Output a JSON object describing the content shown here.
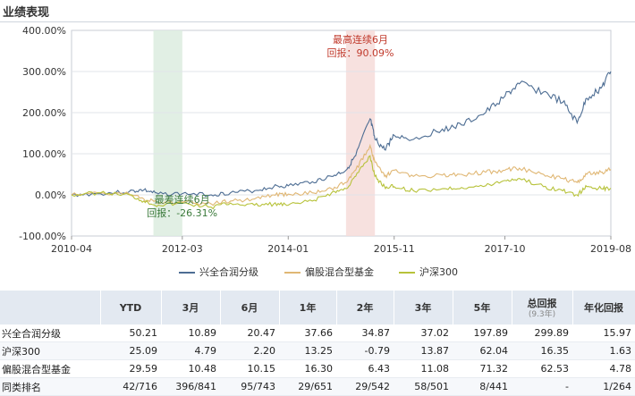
{
  "header": {
    "title": "业绩表现"
  },
  "chart_data": {
    "type": "line",
    "title": "",
    "xlabel": "",
    "ylabel": "",
    "y_ticks": [
      "400.00%",
      "300.00%",
      "200.00%",
      "100.00%",
      "0.00%",
      "-100.00%"
    ],
    "y_tick_values": [
      400,
      300,
      200,
      100,
      0,
      -100
    ],
    "ylim": [
      -100,
      400
    ],
    "x_ticks": [
      "2010-04",
      "2012-03",
      "2014-01",
      "2015-11",
      "2017-10",
      "2019-08"
    ],
    "x_range": [
      "2010-04",
      "2019-08"
    ],
    "grid": "horizontal",
    "legend_position": "bottom",
    "shaded_bands": [
      {
        "from": "2011-09",
        "to": "2012-03",
        "color": "#dcecdf",
        "label_lines": [
          "最差连续6月",
          "回报：-26.31%"
        ],
        "label_color": "#3a7a3a"
      },
      {
        "from": "2015-01",
        "to": "2015-07",
        "color": "#f6dcd9",
        "label_lines": [
          "最高连续6月",
          "回报：90.09%"
        ],
        "label_color": "#c0392b"
      }
    ],
    "series": [
      {
        "name": "兴全合润分级",
        "color": "#4d6d93",
        "x": [
          "2010-04",
          "2010-10",
          "2011-04",
          "2011-07",
          "2011-10",
          "2012-03",
          "2012-09",
          "2013-01",
          "2013-06",
          "2013-10",
          "2014-01",
          "2014-06",
          "2014-10",
          "2015-01",
          "2015-03",
          "2015-06",
          "2015-07",
          "2015-09",
          "2015-11",
          "2016-03",
          "2016-09",
          "2017-01",
          "2017-06",
          "2017-10",
          "2018-01",
          "2018-06",
          "2018-10",
          "2019-01",
          "2019-03",
          "2019-06",
          "2019-08"
        ],
        "y": [
          0,
          3,
          8,
          12,
          2,
          3,
          0,
          5,
          10,
          20,
          22,
          32,
          45,
          60,
          95,
          185,
          135,
          110,
          145,
          135,
          160,
          170,
          200,
          240,
          270,
          250,
          225,
          175,
          235,
          260,
          300
        ]
      },
      {
        "name": "偏股混合型基金",
        "color": "#e0b774",
        "x": [
          "2010-04",
          "2010-10",
          "2011-04",
          "2011-07",
          "2011-10",
          "2012-03",
          "2012-09",
          "2013-01",
          "2013-06",
          "2013-10",
          "2014-01",
          "2014-06",
          "2014-10",
          "2015-01",
          "2015-03",
          "2015-06",
          "2015-07",
          "2015-09",
          "2015-11",
          "2016-03",
          "2016-09",
          "2017-01",
          "2017-06",
          "2017-10",
          "2018-01",
          "2018-06",
          "2018-10",
          "2019-01",
          "2019-03",
          "2019-06",
          "2019-08"
        ],
        "y": [
          0,
          5,
          2,
          -10,
          -20,
          -18,
          -22,
          -15,
          -10,
          0,
          2,
          5,
          15,
          30,
          60,
          120,
          80,
          45,
          60,
          45,
          48,
          50,
          55,
          60,
          65,
          50,
          40,
          30,
          50,
          55,
          62
        ]
      },
      {
        "name": "沪深300",
        "color": "#b7c23a",
        "x": [
          "2010-04",
          "2010-10",
          "2011-04",
          "2011-07",
          "2011-10",
          "2012-03",
          "2012-09",
          "2013-01",
          "2013-06",
          "2013-10",
          "2014-01",
          "2014-06",
          "2014-10",
          "2015-01",
          "2015-03",
          "2015-06",
          "2015-07",
          "2015-09",
          "2015-11",
          "2016-03",
          "2016-09",
          "2017-01",
          "2017-06",
          "2017-10",
          "2018-01",
          "2018-06",
          "2018-10",
          "2019-01",
          "2019-03",
          "2019-06",
          "2019-08"
        ],
        "y": [
          0,
          5,
          0,
          -15,
          -25,
          -20,
          -30,
          -20,
          -25,
          -22,
          -25,
          -15,
          5,
          15,
          45,
          95,
          45,
          20,
          20,
          10,
          15,
          18,
          22,
          35,
          40,
          20,
          10,
          0,
          20,
          15,
          16
        ]
      }
    ]
  },
  "table": {
    "headers": [
      {
        "label": "",
        "sub": ""
      },
      {
        "label": "YTD",
        "sub": ""
      },
      {
        "label": "3月",
        "sub": ""
      },
      {
        "label": "6月",
        "sub": ""
      },
      {
        "label": "1年",
        "sub": ""
      },
      {
        "label": "2年",
        "sub": ""
      },
      {
        "label": "3年",
        "sub": ""
      },
      {
        "label": "5年",
        "sub": ""
      },
      {
        "label": "总回报",
        "sub": "(9.3年)"
      },
      {
        "label": "年化回报",
        "sub": ""
      }
    ],
    "rows": [
      [
        "兴全合润分级",
        "50.21",
        "10.89",
        "20.47",
        "37.66",
        "34.87",
        "37.02",
        "197.89",
        "299.89",
        "15.97"
      ],
      [
        "沪深300",
        "25.09",
        "4.79",
        "2.20",
        "13.25",
        "-0.79",
        "13.87",
        "62.04",
        "16.35",
        "1.63"
      ],
      [
        "偏股混合型基金",
        "29.59",
        "10.48",
        "10.15",
        "16.30",
        "6.43",
        "11.08",
        "71.32",
        "62.53",
        "4.78"
      ],
      [
        "同类排名",
        "42/716",
        "396/841",
        "95/743",
        "29/651",
        "29/542",
        "58/501",
        "8/441",
        "-",
        "1/264"
      ]
    ]
  }
}
